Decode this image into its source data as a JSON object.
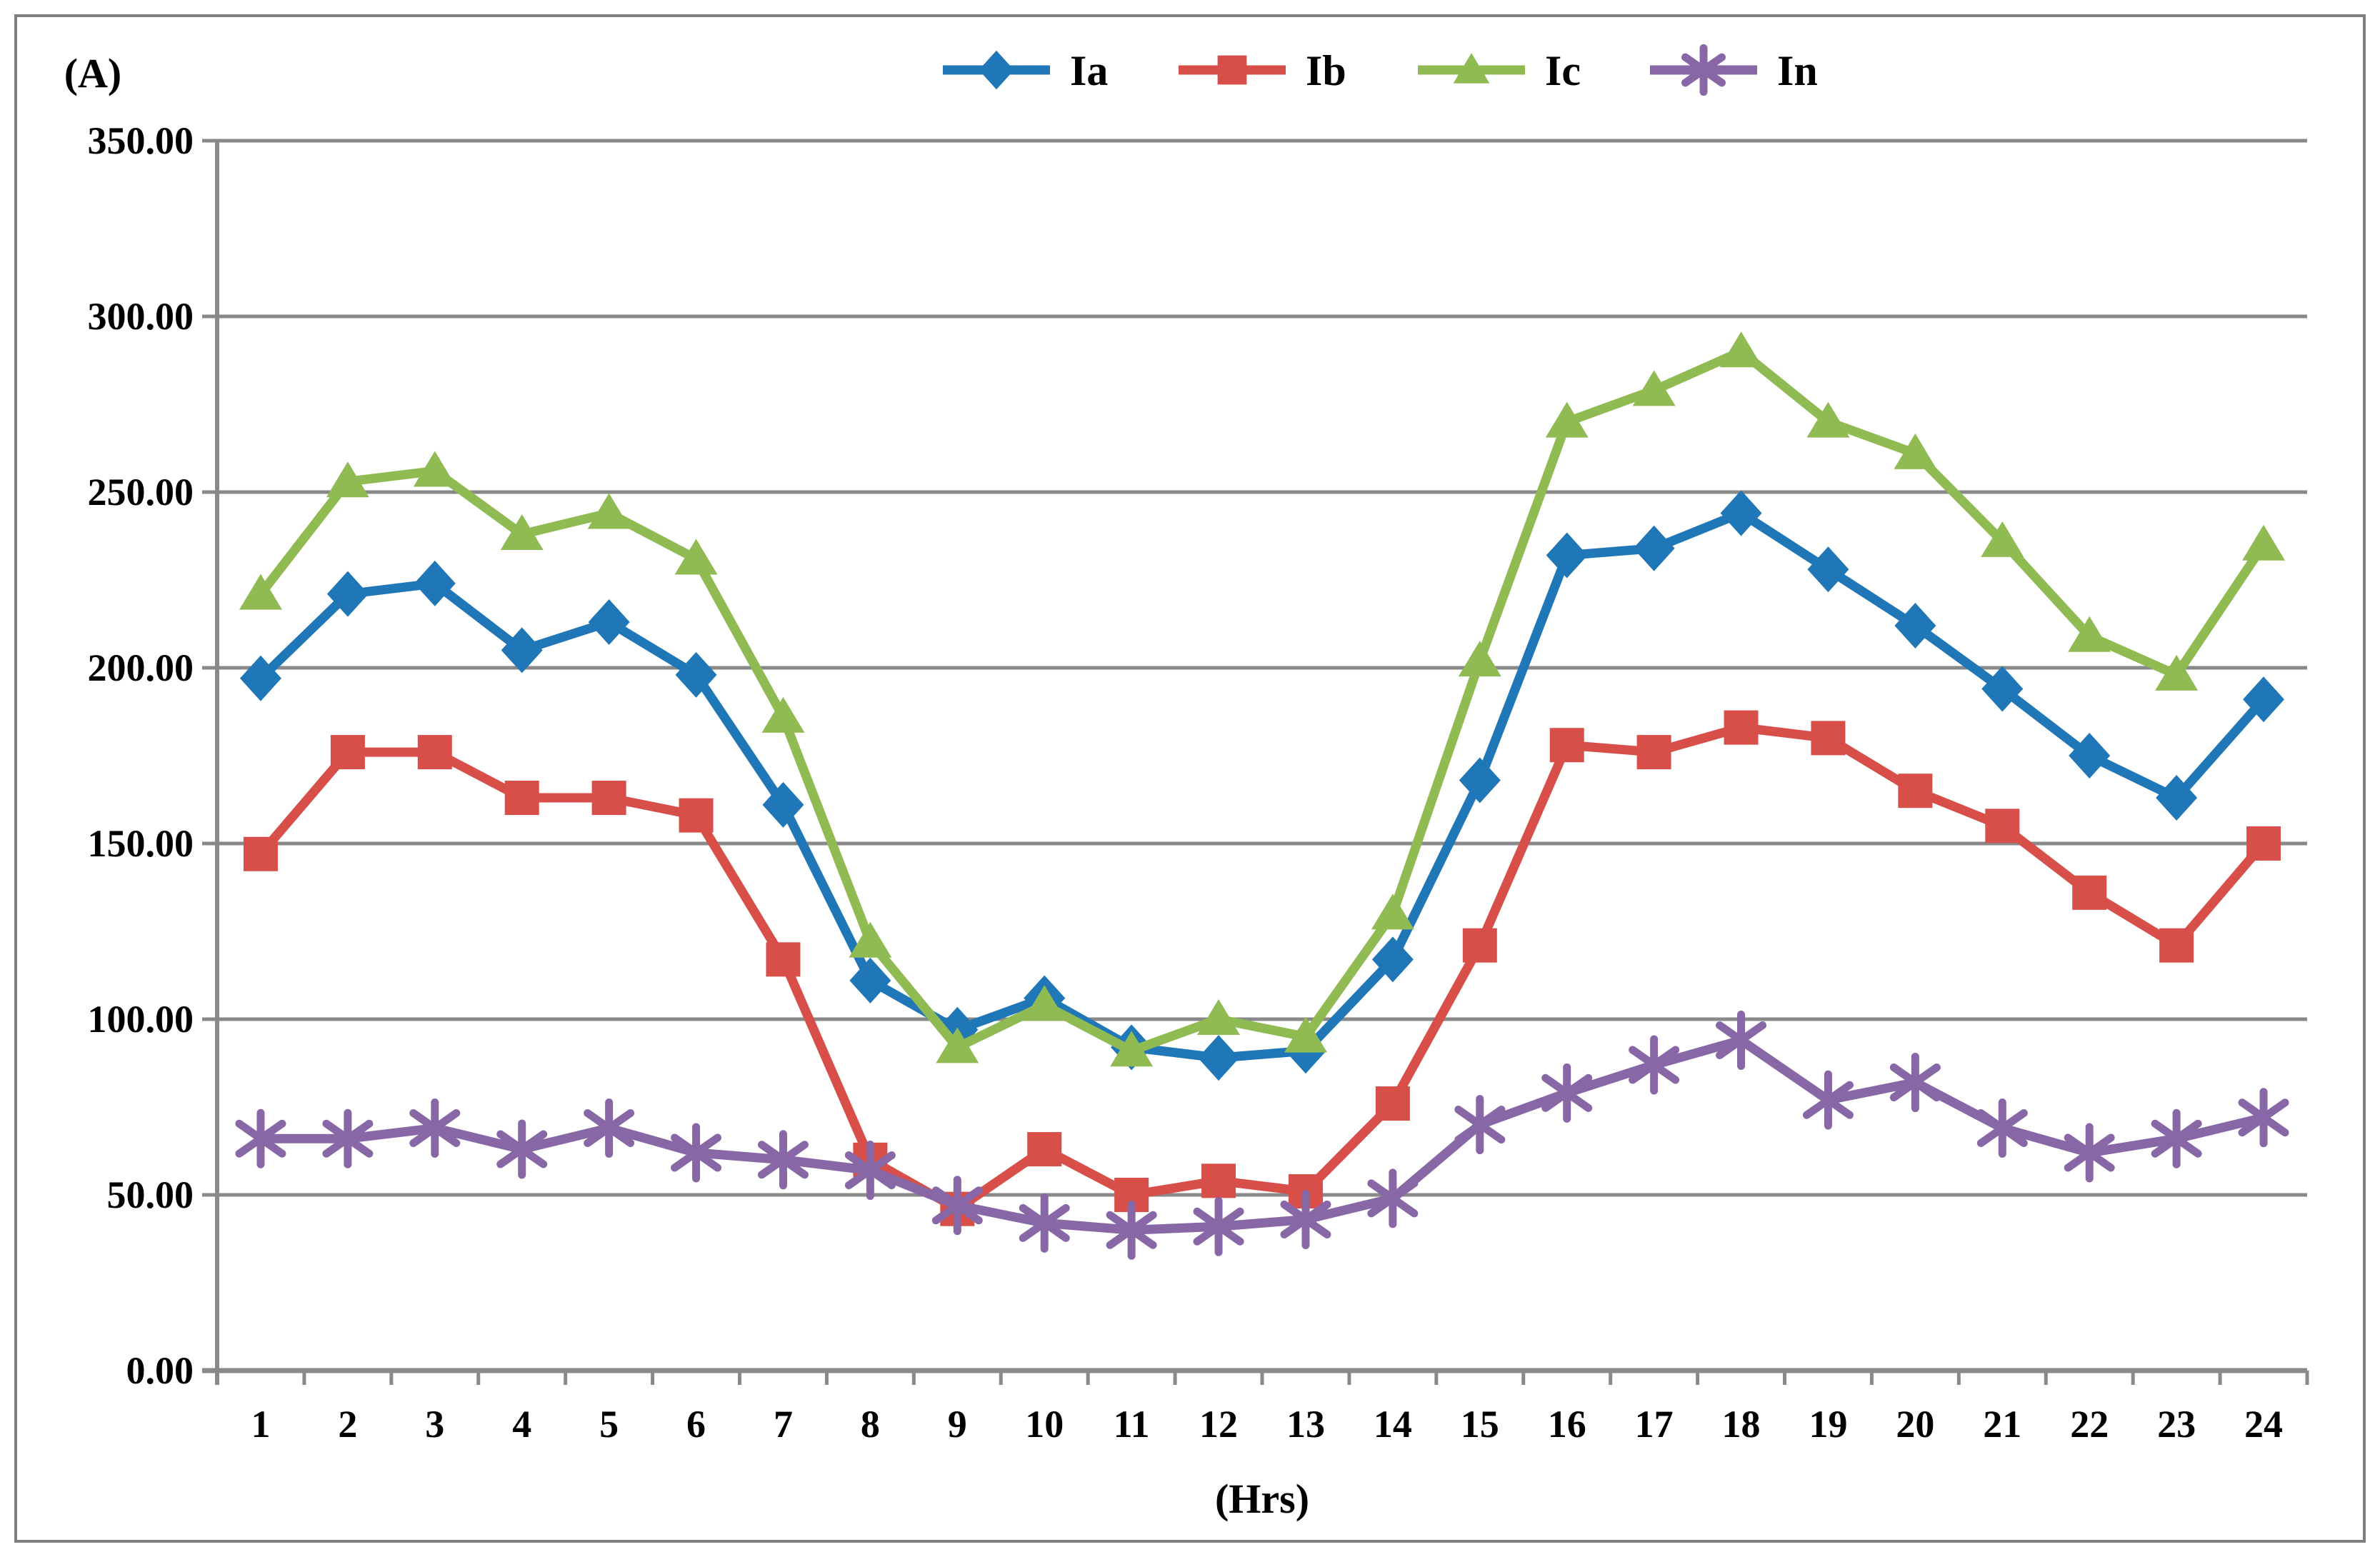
{
  "figure": {
    "background": "#ffffff",
    "border_color": "#7f7f7f"
  },
  "chart_data": {
    "type": "line",
    "title": "",
    "ylabel": "(A)",
    "xlabel": "(Hrs)",
    "x": [
      1,
      2,
      3,
      4,
      5,
      6,
      7,
      8,
      9,
      10,
      11,
      12,
      13,
      14,
      15,
      16,
      17,
      18,
      19,
      20,
      21,
      22,
      23,
      24
    ],
    "ylim": [
      0,
      350
    ],
    "yticks": [
      0,
      50,
      100,
      150,
      200,
      250,
      300,
      350
    ],
    "ytick_labels": [
      "0.00",
      "50.00",
      "100.00",
      "150.00",
      "200.00",
      "250.00",
      "300.00",
      "350.00"
    ],
    "grid": "horizontal",
    "grid_color": "#898989",
    "axis_color": "#898989",
    "text_color": "#000000",
    "legend_position": "top-center",
    "series": [
      {
        "name": "Ia",
        "marker": "diamond",
        "color": "#2077b8",
        "values": [
          197,
          221,
          224,
          205,
          213,
          198,
          161,
          111,
          97,
          106,
          92,
          89,
          91,
          117,
          168,
          232,
          234,
          244,
          228,
          212,
          194,
          175,
          163,
          191
        ]
      },
      {
        "name": "Ib",
        "marker": "square",
        "color": "#d84f4a",
        "values": [
          147,
          176,
          176,
          163,
          163,
          158,
          117,
          60,
          46,
          63,
          50,
          54,
          51,
          76,
          121,
          178,
          176,
          183,
          180,
          165,
          155,
          136,
          121,
          150
        ]
      },
      {
        "name": "Ic",
        "marker": "triangle",
        "color": "#90bb53",
        "values": [
          221,
          253,
          256,
          238,
          244,
          231,
          186,
          122,
          92,
          104,
          91,
          100,
          95,
          130,
          202,
          270,
          279,
          290,
          270,
          261,
          236,
          209,
          198,
          235
        ]
      },
      {
        "name": "In",
        "marker": "asterisk",
        "color": "#8767a5",
        "values": [
          66,
          66,
          69,
          63,
          69,
          62,
          60,
          57,
          47,
          42,
          40,
          41,
          43,
          49,
          70,
          79,
          87,
          94,
          77,
          82,
          69,
          62,
          66,
          72
        ]
      }
    ]
  }
}
